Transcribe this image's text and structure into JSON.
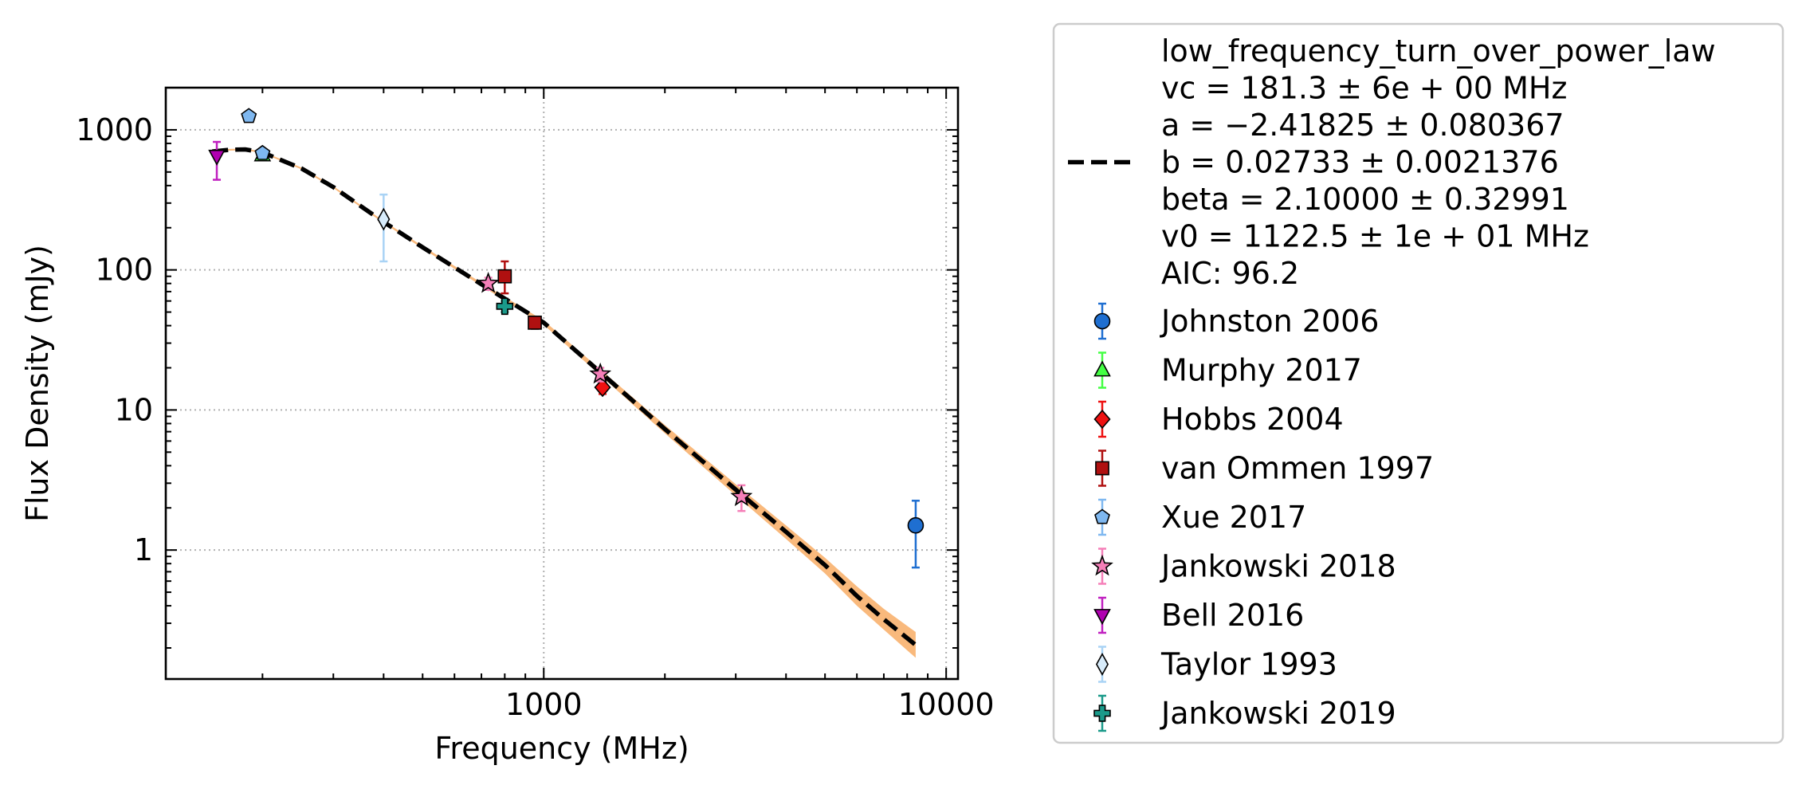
{
  "chart_data": {
    "type": "scatter",
    "xlabel": "Frequency (MHz)",
    "ylabel": "Flux Density (mJy)",
    "xscale": "log",
    "yscale": "log",
    "xlim": [
      115,
      10700
    ],
    "ylim": [
      0.12,
      2000
    ],
    "grid": true,
    "legend_position": "outside-right",
    "x_ticks": [
      {
        "value": 1000,
        "label": "1000"
      },
      {
        "value": 10000,
        "label": "10000"
      }
    ],
    "y_ticks": [
      {
        "value": 1,
        "label": "1"
      },
      {
        "value": 10,
        "label": "10"
      },
      {
        "value": 100,
        "label": "100"
      },
      {
        "value": 1000,
        "label": "1000"
      }
    ],
    "fit": {
      "model": "low_frequency_turn_over_power_law",
      "legend_lines": [
        "low_frequency_turn_over_power_law",
        "vc = 181.3 ± 6e + 00 MHz",
        "a = −2.41825 ± 0.080367",
        "b = 0.02733 ± 0.0021376",
        "beta = 2.10000 ± 0.32991",
        "v0 = 1122.5 ± 1e + 01 MHz",
        "AIC: 96.2"
      ],
      "line_color": "#000000",
      "band_color": "#f9b97c",
      "curve": [
        {
          "x": 150,
          "y": 700,
          "lo": 690,
          "hi": 710
        },
        {
          "x": 165,
          "y": 720,
          "lo": 710,
          "hi": 730
        },
        {
          "x": 181.3,
          "y": 725,
          "lo": 715,
          "hi": 735
        },
        {
          "x": 200,
          "y": 690,
          "lo": 680,
          "hi": 700
        },
        {
          "x": 250,
          "y": 530,
          "lo": 522,
          "hi": 538
        },
        {
          "x": 300,
          "y": 390,
          "lo": 384,
          "hi": 396
        },
        {
          "x": 400,
          "y": 220,
          "lo": 216,
          "hi": 224
        },
        {
          "x": 500,
          "y": 145,
          "lo": 142,
          "hi": 148
        },
        {
          "x": 700,
          "y": 79,
          "lo": 77,
          "hi": 81
        },
        {
          "x": 1000,
          "y": 42,
          "lo": 40.5,
          "hi": 43.5
        },
        {
          "x": 1400,
          "y": 18,
          "lo": 17.1,
          "hi": 18.9
        },
        {
          "x": 2000,
          "y": 7.3,
          "lo": 6.8,
          "hi": 7.8
        },
        {
          "x": 3000,
          "y": 2.7,
          "lo": 2.45,
          "hi": 2.95
        },
        {
          "x": 4000,
          "y": 1.35,
          "lo": 1.2,
          "hi": 1.5
        },
        {
          "x": 5000,
          "y": 0.78,
          "lo": 0.68,
          "hi": 0.88
        },
        {
          "x": 6000,
          "y": 0.47,
          "lo": 0.4,
          "hi": 0.55
        },
        {
          "x": 7000,
          "y": 0.32,
          "lo": 0.27,
          "hi": 0.38
        },
        {
          "x": 8400,
          "y": 0.21,
          "lo": 0.17,
          "hi": 0.26
        }
      ]
    },
    "series": [
      {
        "name": "Johnston 2006",
        "marker": "circle",
        "color": "#1f6fd1",
        "ecolor": "#1f6fd1",
        "points": [
          {
            "x": 8400,
            "y": 1.5,
            "ylo": 0.75,
            "yhi": 2.25
          }
        ]
      },
      {
        "name": "Murphy 2017",
        "marker": "triangle-up",
        "color": "#44ff44",
        "ecolor": "#44ff44",
        "points": [
          {
            "x": 200,
            "y": 660,
            "ylo": 630,
            "yhi": 690
          }
        ]
      },
      {
        "name": "Hobbs 2004",
        "marker": "diamond",
        "color": "#ee1111",
        "ecolor": "#ee1111",
        "points": [
          {
            "x": 1400,
            "y": 14.5,
            "ylo": 13,
            "yhi": 16
          }
        ]
      },
      {
        "name": "van Ommen 1997",
        "marker": "square",
        "color": "#b01010",
        "ecolor": "#b01010",
        "points": [
          {
            "x": 800,
            "y": 90,
            "ylo": 68,
            "yhi": 115
          },
          {
            "x": 950,
            "y": 42,
            "ylo": 38,
            "yhi": 46
          }
        ]
      },
      {
        "name": "Xue 2017",
        "marker": "pentagon",
        "color": "#7fb8f0",
        "ecolor": "#7fb8f0",
        "points": [
          {
            "x": 185,
            "y": 1250,
            "ylo": 1180,
            "yhi": 1320
          },
          {
            "x": 200,
            "y": 680,
            "ylo": 640,
            "yhi": 720
          }
        ]
      },
      {
        "name": "Jankowski 2018",
        "marker": "star",
        "color": "#f57fb8",
        "ecolor": "#f57fb8",
        "points": [
          {
            "x": 728,
            "y": 80,
            "ylo": 72,
            "yhi": 88
          },
          {
            "x": 1382,
            "y": 18,
            "ylo": 16,
            "yhi": 20
          },
          {
            "x": 3100,
            "y": 2.4,
            "ylo": 1.9,
            "yhi": 2.9
          }
        ]
      },
      {
        "name": "Bell 2016",
        "marker": "triangle-down",
        "color": "#b000b0",
        "ecolor": "#c020c0",
        "points": [
          {
            "x": 154,
            "y": 650,
            "ylo": 440,
            "yhi": 820
          }
        ]
      },
      {
        "name": "Taylor 1993",
        "marker": "thin-diamond",
        "color": "#d8ecfb",
        "ecolor": "#a9d3f5",
        "points": [
          {
            "x": 400,
            "y": 230,
            "ylo": 115,
            "yhi": 345
          }
        ]
      },
      {
        "name": "Jankowski 2019",
        "marker": "plus",
        "color": "#1a9a8a",
        "ecolor": "#1a9a8a",
        "points": [
          {
            "x": 800,
            "y": 55,
            "ylo": 50,
            "yhi": 60
          }
        ]
      }
    ]
  }
}
